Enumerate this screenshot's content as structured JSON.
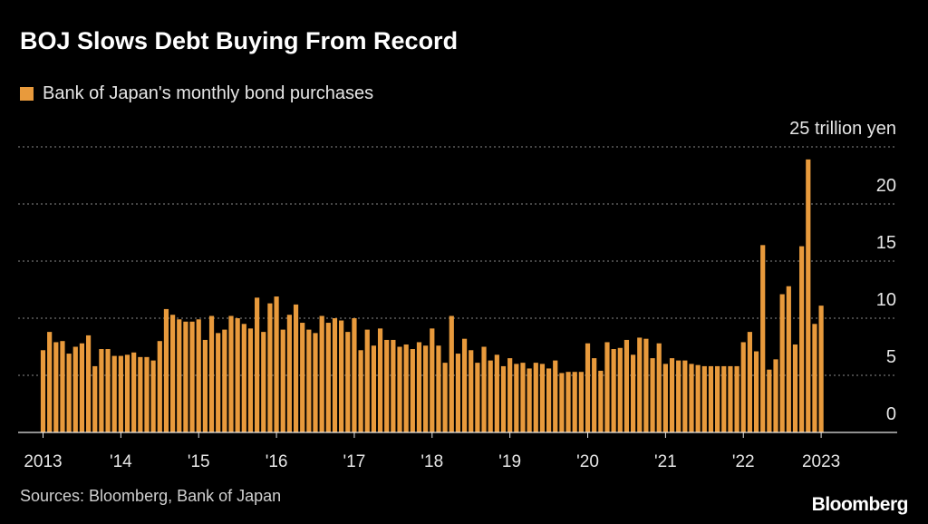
{
  "title": "BOJ Slows Debt Buying From Record",
  "legend": {
    "label": "Bank of Japan's monthly bond purchases",
    "color": "#e89a3c"
  },
  "source": "Sources: Bloomberg, Bank of Japan",
  "brand": "Bloomberg",
  "chart_data": {
    "type": "bar",
    "title": "BOJ Slows Debt Buying From Record",
    "series_name": "Bank of Japan's monthly bond purchases",
    "unit_label": "25 trillion yen",
    "ylim": [
      0,
      25
    ],
    "yticks": [
      0,
      5,
      10,
      15,
      20,
      25
    ],
    "ytick_labels": [
      "0",
      "5",
      "10",
      "15",
      "20",
      "25 trillion yen"
    ],
    "grid": true,
    "x_tick_labels": [
      "2013",
      "'14",
      "'15",
      "'16",
      "'17",
      "'18",
      "'19",
      "'20",
      "'21",
      "'22",
      "2023"
    ],
    "x_tick_years": [
      2013,
      2014,
      2015,
      2016,
      2017,
      2018,
      2019,
      2020,
      2021,
      2022,
      2023
    ],
    "start": "2013-01",
    "values": [
      7.2,
      8.8,
      7.9,
      8.0,
      6.9,
      7.5,
      7.8,
      8.5,
      5.8,
      7.3,
      7.3,
      6.7,
      6.7,
      6.8,
      7.0,
      6.6,
      6.6,
      6.3,
      8.0,
      10.8,
      10.3,
      9.9,
      9.7,
      9.7,
      9.9,
      8.1,
      10.2,
      8.7,
      9.0,
      10.2,
      10.0,
      9.5,
      9.1,
      11.8,
      8.8,
      11.3,
      11.9,
      9.0,
      10.3,
      11.2,
      9.6,
      9.0,
      8.7,
      10.2,
      9.6,
      10.0,
      9.8,
      8.8,
      10.0,
      7.2,
      9.0,
      7.6,
      9.1,
      8.1,
      8.1,
      7.5,
      7.7,
      7.3,
      7.9,
      7.6,
      9.1,
      7.6,
      6.1,
      10.2,
      6.9,
      8.2,
      7.2,
      6.1,
      7.5,
      6.3,
      6.8,
      5.8,
      6.5,
      6.0,
      6.1,
      5.6,
      6.1,
      6.0,
      5.6,
      6.3,
      5.2,
      5.3,
      5.3,
      5.3,
      7.8,
      6.5,
      5.4,
      7.9,
      7.3,
      7.4,
      8.1,
      6.8,
      8.3,
      8.2,
      6.5,
      7.8,
      6.0,
      6.5,
      6.3,
      6.3,
      6.0,
      5.9,
      5.8,
      5.8,
      5.8,
      5.8,
      5.8,
      5.8,
      7.9,
      8.8,
      7.1,
      16.4,
      5.5,
      6.4,
      12.1,
      12.8,
      7.7,
      16.3,
      23.9,
      9.5,
      11.1
    ]
  }
}
